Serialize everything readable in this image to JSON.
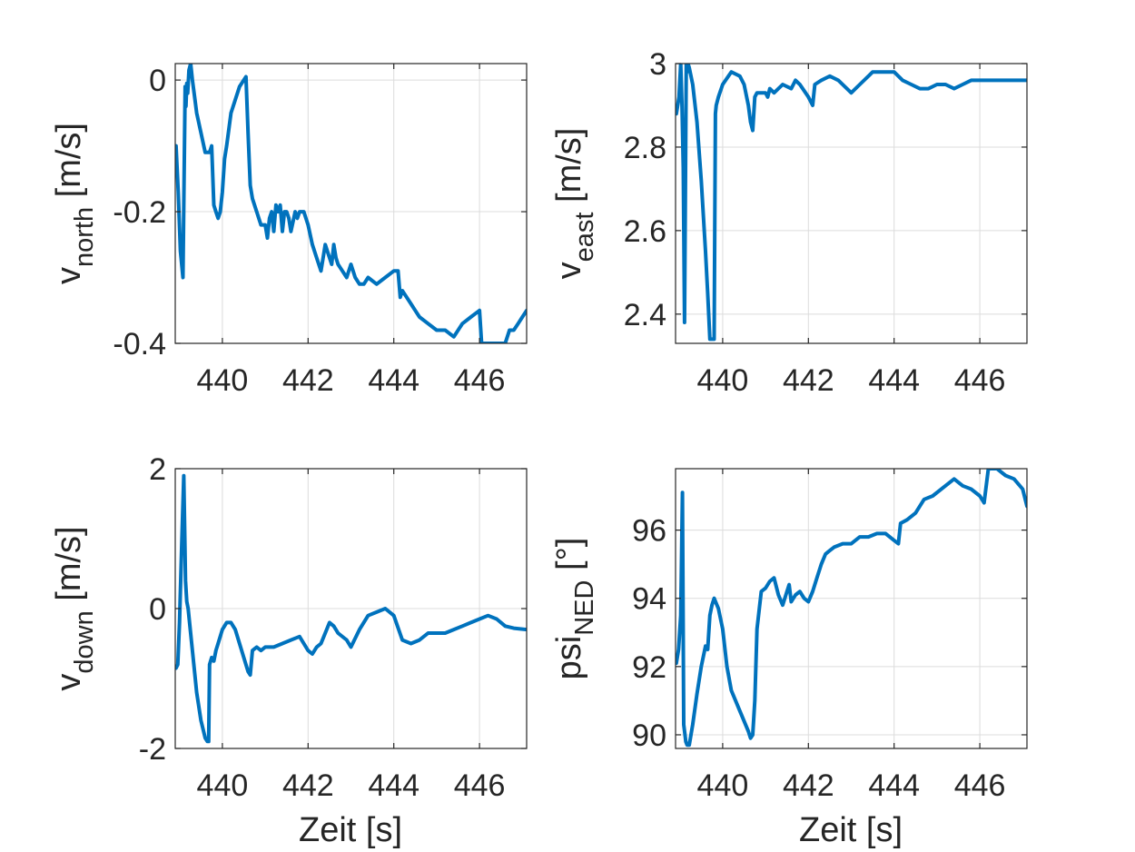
{
  "figure": {
    "background": "#ffffff",
    "line_color": "#0072BD",
    "xlabel": "Zeit [s]"
  },
  "chart_data": [
    {
      "type": "line",
      "ylabel": {
        "main": "v",
        "sub": "north",
        "suffix": " [m/s]"
      },
      "xlim": [
        438.9,
        447.1
      ],
      "ylim": [
        -0.4,
        0.025
      ],
      "xticks": [
        440,
        442,
        444,
        446
      ],
      "yticks": [
        -0.4,
        -0.2,
        0
      ],
      "ytick_labels": [
        "-0.4",
        "-0.2",
        "0"
      ],
      "grid": true,
      "series": [
        {
          "x": [
            438.92,
            438.97,
            439.02,
            439.08,
            439.13,
            439.15,
            439.17,
            439.19,
            439.22,
            439.26,
            439.3,
            439.34,
            439.4,
            439.5,
            439.6,
            439.7,
            439.75,
            439.8,
            439.85,
            439.9,
            439.95,
            440.0,
            440.05,
            440.1,
            440.2,
            440.3,
            440.4,
            440.55,
            440.6,
            440.65,
            440.65,
            440.7,
            440.8,
            440.9,
            441.0,
            441.05,
            441.1,
            441.15,
            441.2,
            441.25,
            441.3,
            441.35,
            441.4,
            441.45,
            441.5,
            441.55,
            441.6,
            441.7,
            441.75,
            441.8,
            441.9,
            442.0,
            442.1,
            442.2,
            442.3,
            442.4,
            442.5,
            442.55,
            442.6,
            442.65,
            442.7,
            442.8,
            442.9,
            443.0,
            443.1,
            443.2,
            443.3,
            443.4,
            443.6,
            443.8,
            444.0,
            444.1,
            444.15,
            444.2,
            444.3,
            444.4,
            444.5,
            444.6,
            444.8,
            445.0,
            445.2,
            445.4,
            445.6,
            445.8,
            446.0,
            446.05,
            446.1,
            446.2,
            446.3,
            446.5,
            446.6,
            446.7,
            446.8,
            446.9,
            447.0,
            447.1
          ],
          "y": [
            -0.1,
            -0.17,
            -0.26,
            -0.3,
            -0.01,
            -0.04,
            -0.005,
            -0.02,
            0.015,
            0.025,
            0.0,
            -0.02,
            -0.05,
            -0.08,
            -0.11,
            -0.11,
            -0.1,
            -0.19,
            -0.2,
            -0.21,
            -0.2,
            -0.17,
            -0.12,
            -0.1,
            -0.05,
            -0.03,
            -0.01,
            0.005,
            -0.08,
            -0.16,
            -0.16,
            -0.18,
            -0.2,
            -0.22,
            -0.22,
            -0.24,
            -0.21,
            -0.2,
            -0.23,
            -0.19,
            -0.2,
            -0.19,
            -0.23,
            -0.2,
            -0.2,
            -0.21,
            -0.23,
            -0.2,
            -0.21,
            -0.2,
            -0.2,
            -0.22,
            -0.25,
            -0.27,
            -0.29,
            -0.25,
            -0.27,
            -0.28,
            -0.25,
            -0.27,
            -0.28,
            -0.29,
            -0.3,
            -0.28,
            -0.3,
            -0.31,
            -0.31,
            -0.3,
            -0.31,
            -0.3,
            -0.29,
            -0.29,
            -0.33,
            -0.32,
            -0.33,
            -0.34,
            -0.35,
            -0.36,
            -0.37,
            -0.38,
            -0.38,
            -0.39,
            -0.37,
            -0.36,
            -0.35,
            -0.4,
            -0.4,
            -0.4,
            -0.4,
            -0.4,
            -0.4,
            -0.38,
            -0.38,
            -0.37,
            -0.36,
            -0.35
          ]
        }
      ]
    },
    {
      "type": "line",
      "ylabel": {
        "main": "v",
        "sub": "east",
        "suffix": " [m/s]"
      },
      "xlim": [
        438.9,
        447.1
      ],
      "ylim": [
        2.33,
        3.0
      ],
      "xticks": [
        440,
        442,
        444,
        446
      ],
      "yticks": [
        2.4,
        2.6,
        2.8,
        3
      ],
      "ytick_labels": [
        "2.4",
        "2.6",
        "2.8",
        "3"
      ],
      "grid": true,
      "series": [
        {
          "x": [
            438.92,
            438.98,
            439.02,
            439.05,
            439.08,
            439.11,
            439.15,
            439.17,
            439.19,
            439.22,
            439.3,
            439.4,
            439.5,
            439.6,
            439.65,
            439.7,
            439.8,
            439.83,
            439.85,
            439.9,
            440.0,
            440.2,
            440.4,
            440.5,
            440.6,
            440.65,
            440.7,
            440.75,
            440.8,
            441.0,
            441.05,
            441.1,
            441.2,
            441.4,
            441.6,
            441.7,
            441.8,
            442.0,
            442.1,
            442.15,
            442.3,
            442.5,
            442.7,
            443.0,
            443.2,
            443.4,
            443.5,
            443.6,
            443.8,
            444.0,
            444.2,
            444.4,
            444.6,
            444.8,
            445.0,
            445.2,
            445.4,
            445.6,
            445.8,
            446.0,
            446.4,
            446.8,
            447.1
          ],
          "y": [
            2.88,
            2.92,
            3.0,
            2.9,
            2.75,
            2.38,
            3.0,
            2.98,
            3.0,
            2.99,
            2.95,
            2.86,
            2.72,
            2.55,
            2.45,
            2.34,
            2.34,
            2.88,
            2.9,
            2.92,
            2.95,
            2.98,
            2.97,
            2.95,
            2.9,
            2.86,
            2.84,
            2.92,
            2.93,
            2.93,
            2.92,
            2.94,
            2.93,
            2.95,
            2.94,
            2.96,
            2.95,
            2.92,
            2.9,
            2.95,
            2.96,
            2.97,
            2.96,
            2.93,
            2.95,
            2.97,
            2.98,
            2.98,
            2.98,
            2.98,
            2.96,
            2.95,
            2.94,
            2.94,
            2.95,
            2.95,
            2.94,
            2.95,
            2.96,
            2.96,
            2.96,
            2.96,
            2.96
          ]
        }
      ]
    },
    {
      "type": "line",
      "ylabel": {
        "main": "v",
        "sub": "down",
        "suffix": " [m/s]"
      },
      "xlim": [
        438.9,
        447.1
      ],
      "ylim": [
        -2,
        2
      ],
      "xticks": [
        440,
        442,
        444,
        446
      ],
      "yticks": [
        -2,
        0,
        2
      ],
      "ytick_labels": [
        "-2",
        "0",
        "2"
      ],
      "grid": true,
      "series": [
        {
          "x": [
            438.92,
            438.96,
            439.0,
            439.05,
            439.1,
            439.14,
            439.17,
            439.2,
            439.3,
            439.4,
            439.5,
            439.6,
            439.65,
            439.68,
            439.7,
            439.75,
            439.8,
            439.85,
            439.9,
            440.0,
            440.1,
            440.2,
            440.3,
            440.4,
            440.5,
            440.6,
            440.65,
            440.7,
            440.8,
            440.9,
            441.0,
            441.2,
            441.4,
            441.6,
            441.8,
            441.9,
            442.0,
            442.1,
            442.2,
            442.3,
            442.4,
            442.5,
            442.6,
            442.7,
            442.9,
            443.0,
            443.2,
            443.4,
            443.6,
            443.8,
            444.0,
            444.2,
            444.4,
            444.6,
            444.8,
            445.0,
            445.2,
            445.4,
            445.6,
            445.8,
            446.0,
            446.2,
            446.4,
            446.6,
            446.8,
            447.1
          ],
          "y": [
            -0.85,
            -0.8,
            -0.2,
            0.9,
            1.9,
            0.4,
            0.1,
            0.0,
            -0.6,
            -1.2,
            -1.6,
            -1.85,
            -1.9,
            -1.9,
            -0.8,
            -0.7,
            -0.75,
            -0.6,
            -0.5,
            -0.3,
            -0.2,
            -0.2,
            -0.3,
            -0.5,
            -0.7,
            -0.9,
            -0.95,
            -0.6,
            -0.55,
            -0.6,
            -0.55,
            -0.55,
            -0.5,
            -0.45,
            -0.4,
            -0.5,
            -0.6,
            -0.65,
            -0.55,
            -0.5,
            -0.35,
            -0.2,
            -0.25,
            -0.35,
            -0.45,
            -0.55,
            -0.3,
            -0.1,
            -0.05,
            0.0,
            -0.1,
            -0.45,
            -0.5,
            -0.45,
            -0.35,
            -0.35,
            -0.35,
            -0.3,
            -0.25,
            -0.2,
            -0.15,
            -0.1,
            -0.15,
            -0.25,
            -0.28,
            -0.3
          ]
        }
      ]
    },
    {
      "type": "line",
      "ylabel": {
        "main": "psi",
        "sub": "NED",
        "suffix": " [°]"
      },
      "xlim": [
        438.9,
        447.1
      ],
      "ylim": [
        89.6,
        97.8
      ],
      "xticks": [
        440,
        442,
        444,
        446
      ],
      "yticks": [
        90,
        92,
        94,
        96
      ],
      "ytick_labels": [
        "90",
        "92",
        "94",
        "96"
      ],
      "grid": true,
      "series": [
        {
          "x": [
            438.92,
            438.97,
            439.02,
            439.06,
            439.09,
            439.12,
            439.14,
            439.17,
            439.22,
            439.3,
            439.4,
            439.5,
            439.6,
            439.65,
            439.7,
            439.75,
            439.8,
            439.9,
            440.0,
            440.1,
            440.2,
            440.4,
            440.6,
            440.65,
            440.7,
            440.75,
            440.8,
            440.9,
            441.0,
            441.1,
            441.2,
            441.3,
            441.4,
            441.5,
            441.55,
            441.6,
            441.7,
            441.8,
            441.9,
            442.0,
            442.1,
            442.2,
            442.3,
            442.4,
            442.5,
            442.6,
            442.8,
            443.0,
            443.2,
            443.4,
            443.6,
            443.8,
            444.0,
            444.1,
            444.15,
            444.3,
            444.5,
            444.7,
            444.9,
            445.2,
            445.4,
            445.6,
            445.8,
            446.0,
            446.1,
            446.2,
            446.4,
            446.6,
            446.8,
            447.0,
            447.1
          ],
          "y": [
            92.1,
            92.5,
            93.5,
            97.1,
            90.3,
            90.0,
            89.8,
            89.7,
            89.7,
            90.3,
            91.2,
            92.0,
            92.6,
            92.5,
            93.5,
            93.8,
            94.0,
            93.7,
            93.1,
            92.0,
            91.3,
            90.7,
            90.1,
            89.9,
            90.0,
            91.0,
            93.1,
            94.2,
            94.3,
            94.5,
            94.6,
            94.1,
            93.8,
            94.2,
            94.4,
            93.9,
            94.1,
            94.2,
            94.0,
            93.9,
            94.2,
            94.6,
            95.0,
            95.3,
            95.4,
            95.5,
            95.6,
            95.6,
            95.8,
            95.8,
            95.9,
            95.9,
            95.7,
            95.6,
            96.2,
            96.3,
            96.5,
            96.9,
            97.0,
            97.3,
            97.5,
            97.3,
            97.2,
            97.0,
            96.8,
            97.8,
            97.8,
            97.6,
            97.5,
            97.2,
            96.7
          ]
        }
      ]
    }
  ]
}
